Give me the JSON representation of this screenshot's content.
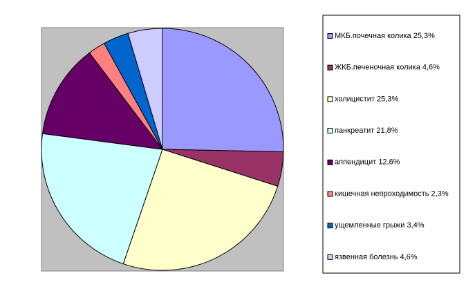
{
  "chart_data": {
    "type": "pie",
    "categories": [
      "МКБ.почечная колика 25,3%",
      "ЖКБ.печеночная колика 4,6%",
      "холицистит 25,3%",
      "панкреатит 21,8%",
      "аппендицит 12,6%",
      "кишечная непроходимость 2,3%",
      "ущемленные грыжи 3,4%",
      "язвенная болезнь 4,6%"
    ],
    "values": [
      25.3,
      4.6,
      25.3,
      21.8,
      12.6,
      2.3,
      3.4,
      4.6
    ],
    "colors": [
      "#9999ff",
      "#993366",
      "#ffffcc",
      "#ccffff",
      "#660066",
      "#ff8080",
      "#0066cc",
      "#ccccff"
    ],
    "legend": "right"
  }
}
